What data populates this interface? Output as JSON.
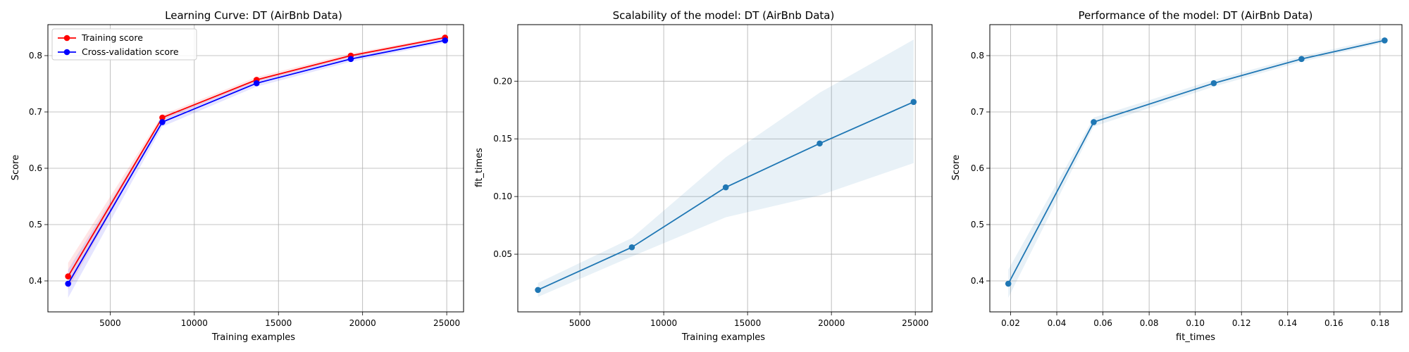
{
  "chart_data": [
    {
      "type": "line",
      "title": "Learning Curve: DT (AirBnb Data)",
      "xlabel": "Training examples",
      "ylabel": "Score",
      "xlim": [
        1300,
        26000
      ],
      "ylim": [
        0.345,
        0.855
      ],
      "xticks": [
        5000,
        10000,
        15000,
        20000,
        25000
      ],
      "yticks": [
        0.4,
        0.5,
        0.6,
        0.7,
        0.8
      ],
      "x": [
        2500,
        8100,
        13700,
        19300,
        24900
      ],
      "grid": true,
      "legend": "top-left",
      "series": [
        {
          "name": "Training score",
          "color": "#ff0000",
          "values": [
            0.408,
            0.69,
            0.757,
            0.8,
            0.832
          ],
          "band_lower": [
            0.385,
            0.685,
            0.753,
            0.797,
            0.829
          ],
          "band_upper": [
            0.432,
            0.695,
            0.762,
            0.804,
            0.835
          ]
        },
        {
          "name": "Cross-validation score",
          "color": "#0000ff",
          "values": [
            0.395,
            0.682,
            0.751,
            0.794,
            0.827
          ],
          "band_lower": [
            0.37,
            0.674,
            0.745,
            0.789,
            0.823
          ],
          "band_upper": [
            0.42,
            0.69,
            0.757,
            0.799,
            0.832
          ]
        }
      ]
    },
    {
      "type": "line",
      "title": "Scalability of the model: DT (AirBnb Data)",
      "xlabel": "Training examples",
      "ylabel": "fit_times",
      "xlim": [
        1300,
        26000
      ],
      "ylim": [
        0.0,
        0.249
      ],
      "xticks": [
        5000,
        10000,
        15000,
        20000,
        25000
      ],
      "yticks": [
        0.05,
        0.1,
        0.15,
        0.2
      ],
      "x": [
        2500,
        8100,
        13700,
        19300,
        24900
      ],
      "grid": true,
      "series": [
        {
          "color": "#1f77b4",
          "values": [
            0.019,
            0.056,
            0.108,
            0.146,
            0.182
          ],
          "band_lower": [
            0.013,
            0.048,
            0.082,
            0.101,
            0.129
          ],
          "band_upper": [
            0.025,
            0.064,
            0.134,
            0.19,
            0.236
          ]
        }
      ]
    },
    {
      "type": "line",
      "title": "Performance of the model: DT (AirBnb Data)",
      "xlabel": "fit_times",
      "ylabel": "Score",
      "xlim": [
        0.011,
        0.1895
      ],
      "ylim": [
        0.345,
        0.855
      ],
      "xticks": [
        0.02,
        0.04,
        0.06,
        0.08,
        0.1,
        0.12,
        0.14,
        0.16,
        0.18
      ],
      "xtick_labels": [
        "0.02",
        "0.04",
        "0.06",
        "0.08",
        "0.10",
        "0.12",
        "0.14",
        "0.16",
        "0.18"
      ],
      "yticks": [
        0.4,
        0.5,
        0.6,
        0.7,
        0.8
      ],
      "x": [
        0.019,
        0.056,
        0.108,
        0.146,
        0.182
      ],
      "grid": true,
      "series": [
        {
          "color": "#1f77b4",
          "values": [
            0.395,
            0.682,
            0.751,
            0.794,
            0.827
          ],
          "band_lower": [
            0.37,
            0.674,
            0.745,
            0.789,
            0.823
          ],
          "band_upper": [
            0.42,
            0.69,
            0.757,
            0.799,
            0.832
          ]
        }
      ]
    }
  ]
}
